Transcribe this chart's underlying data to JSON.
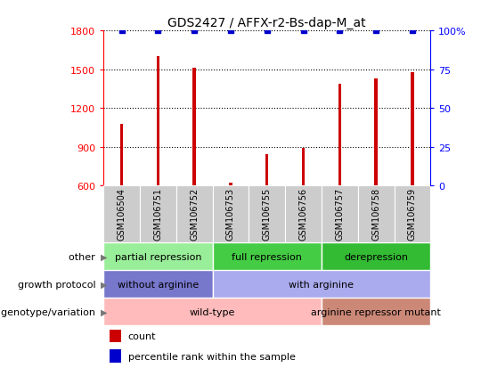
{
  "title": "GDS2427 / AFFX-r2-Bs-dap-M_at",
  "samples": [
    "GSM106504",
    "GSM106751",
    "GSM106752",
    "GSM106753",
    "GSM106755",
    "GSM106756",
    "GSM106757",
    "GSM106758",
    "GSM106759"
  ],
  "counts": [
    1080,
    1600,
    1510,
    620,
    840,
    890,
    1390,
    1430,
    1480
  ],
  "percentile_ranks": [
    100,
    100,
    100,
    100,
    100,
    100,
    100,
    100,
    100
  ],
  "ylim_left": [
    600,
    1800
  ],
  "ylim_right": [
    0,
    100
  ],
  "yticks_left": [
    600,
    900,
    1200,
    1500,
    1800
  ],
  "yticks_right": [
    0,
    25,
    50,
    75,
    100
  ],
  "bar_color": "#cc0000",
  "dot_color": "#0000cc",
  "bar_bottom": 600,
  "bar_width": 0.08,
  "annotation_rows": [
    {
      "label": "other",
      "segments": [
        {
          "text": "partial repression",
          "start": 0,
          "end": 3,
          "color": "#99ee99"
        },
        {
          "text": "full repression",
          "start": 3,
          "end": 6,
          "color": "#44cc44"
        },
        {
          "text": "derepression",
          "start": 6,
          "end": 9,
          "color": "#33bb33"
        }
      ]
    },
    {
      "label": "growth protocol",
      "segments": [
        {
          "text": "without arginine",
          "start": 0,
          "end": 3,
          "color": "#7777cc"
        },
        {
          "text": "with arginine",
          "start": 3,
          "end": 9,
          "color": "#aaaaee"
        }
      ]
    },
    {
      "label": "genotype/variation",
      "segments": [
        {
          "text": "wild-type",
          "start": 0,
          "end": 6,
          "color": "#ffbbbb"
        },
        {
          "text": "arginine repressor mutant",
          "start": 6,
          "end": 9,
          "color": "#cc8877"
        }
      ]
    }
  ],
  "legend_items": [
    {
      "color": "#cc0000",
      "label": "count"
    },
    {
      "color": "#0000cc",
      "label": "percentile rank within the sample"
    }
  ]
}
